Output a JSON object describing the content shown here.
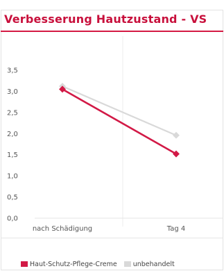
{
  "chart_data": {
    "type": "line",
    "title": "Verbesserung Hautzustand - VS",
    "categories": [
      "nach Schädigung",
      "Tag 4"
    ],
    "y_ticks": [
      "0,0",
      "0,5",
      "1,0",
      "1,5",
      "2,0",
      "2,5",
      "3,0",
      "3,5"
    ],
    "ylim": [
      0,
      3.5
    ],
    "grid": "vertical",
    "legend_position": "bottom",
    "series": [
      {
        "name": "Haut-Schutz-Pflege-Creme",
        "values": [
          3.05,
          1.52
        ],
        "color": "#d21946"
      },
      {
        "name": "unbehandelt",
        "values": [
          3.12,
          1.96
        ],
        "color": "#d9d9d9"
      }
    ]
  }
}
